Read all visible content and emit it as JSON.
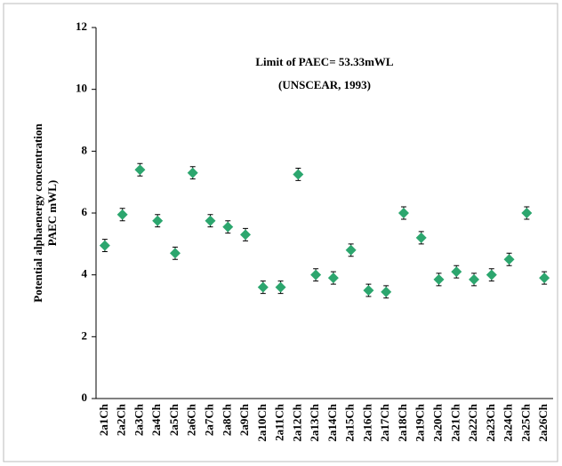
{
  "chart_data": {
    "type": "scatter",
    "annotations": [
      "Limit of PAEC= 53.33mWL",
      "(UNSCEAR, 1993)"
    ],
    "ylabel": [
      "Potential alphaenergy concentration",
      "PAEC mWL)"
    ],
    "categories": [
      "2a1Ch",
      "2a2Ch",
      "2a3Ch",
      "2a4Ch",
      "2a5Ch",
      "2a6Ch",
      "2a7Ch",
      "2a8Ch",
      "2a9Ch",
      "2a10Ch",
      "2a11Ch",
      "2a12Ch",
      "2a13Ch",
      "2a14Ch",
      "2a15Ch",
      "2a16Ch",
      "2a17Ch",
      "2a18Ch",
      "2a19Ch",
      "2a20Ch",
      "2a21Ch",
      "2a22Ch",
      "2a23Ch",
      "2a24Ch",
      "2a25Ch",
      "2a26Ch"
    ],
    "values": [
      4.95,
      5.95,
      7.4,
      5.75,
      4.7,
      7.3,
      5.75,
      5.55,
      5.3,
      3.6,
      3.6,
      7.25,
      4.0,
      3.9,
      4.8,
      3.5,
      3.45,
      6.0,
      5.2,
      3.85,
      4.1,
      3.85,
      4.0,
      4.5,
      6.0,
      3.9
    ],
    "errors": [
      0.2,
      0.2,
      0.2,
      0.2,
      0.2,
      0.2,
      0.2,
      0.2,
      0.2,
      0.2,
      0.2,
      0.2,
      0.2,
      0.2,
      0.2,
      0.2,
      0.2,
      0.2,
      0.2,
      0.2,
      0.2,
      0.2,
      0.2,
      0.2,
      0.2,
      0.2
    ],
    "color": "#2ca66e",
    "ylim": [
      0,
      12
    ],
    "yticks": [
      0,
      2,
      4,
      6,
      8,
      10,
      12
    ]
  }
}
